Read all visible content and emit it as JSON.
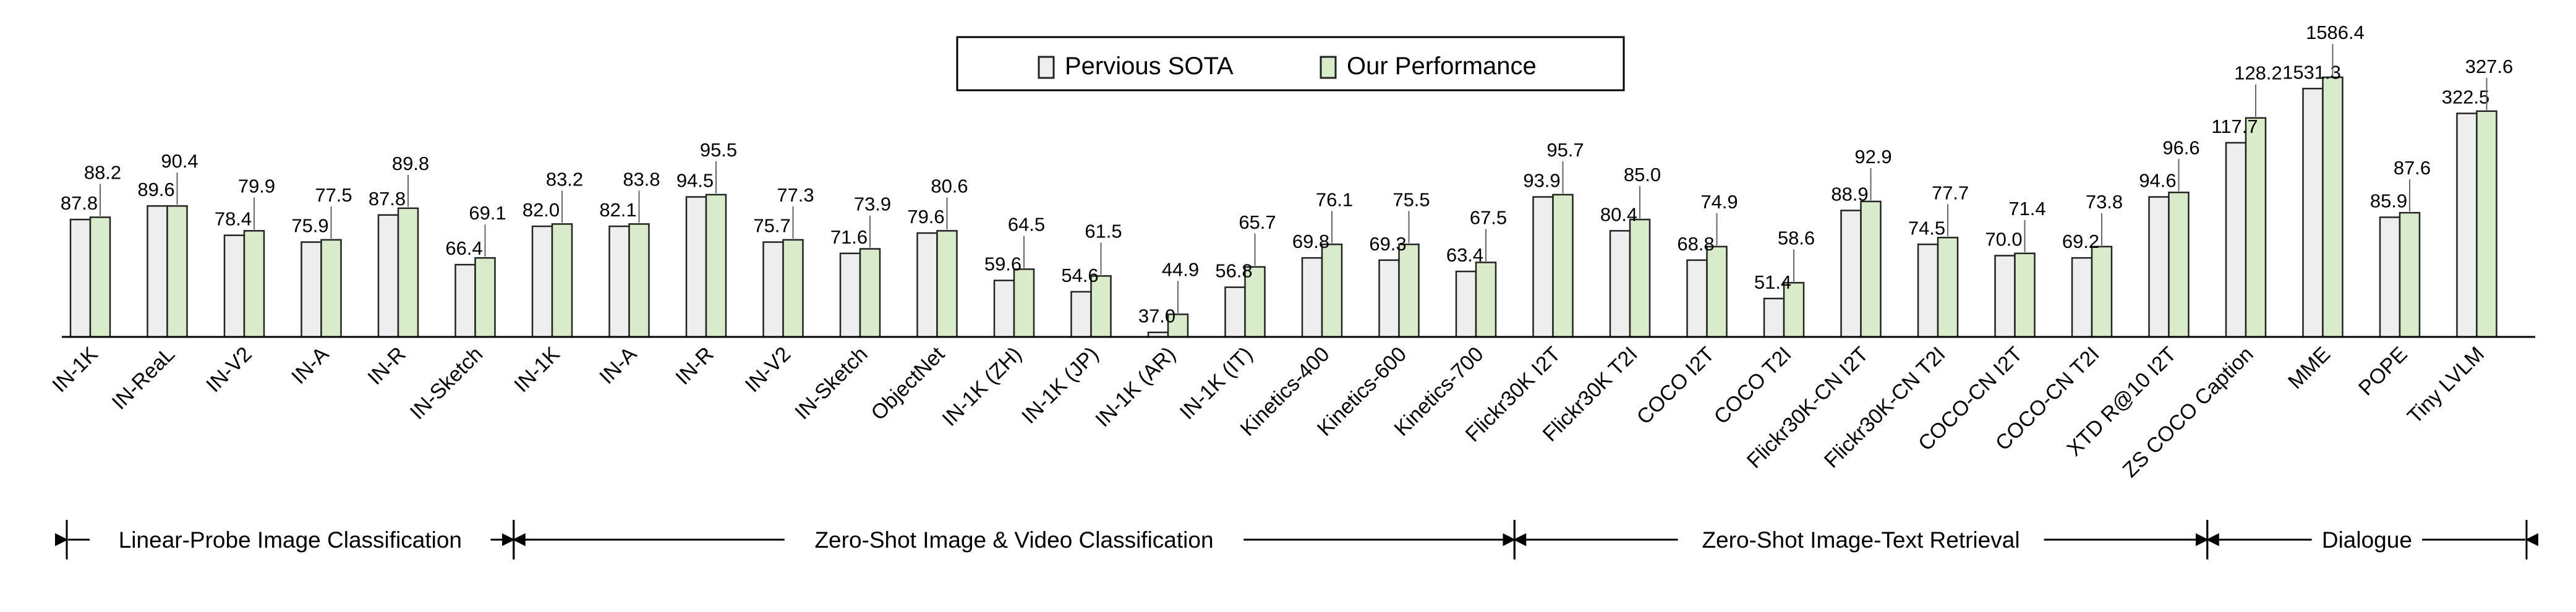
{
  "chart_data": {
    "type": "bar",
    "legend": {
      "placement": "top-center"
    },
    "grid": false,
    "colors": {
      "previous": "#eeeeee",
      "ours": "#d9ecc9",
      "stroke": "#222222"
    },
    "series": [
      {
        "name": "Pervious SOTA",
        "color": "#eeeeee"
      },
      {
        "name": "Our Performance",
        "color": "#d9ecc9"
      }
    ],
    "categories": [
      {
        "label": "IN-1K",
        "prev": "87.8",
        "ours": "88.2",
        "h1": 0.52,
        "h2": 0.53
      },
      {
        "label": "IN-ReaL",
        "prev": "89.6",
        "ours": "90.4",
        "h1": 0.58,
        "h2": 0.58
      },
      {
        "label": "IN-V2",
        "prev": "78.4",
        "ours": "79.9",
        "h1": 0.45,
        "h2": 0.47
      },
      {
        "label": "IN-A",
        "prev": "75.9",
        "ours": "77.5",
        "h1": 0.42,
        "h2": 0.43
      },
      {
        "label": "IN-R",
        "prev": "87.8",
        "ours": "89.8",
        "h1": 0.54,
        "h2": 0.57
      },
      {
        "label": "IN-Sketch",
        "prev": "66.4",
        "ours": "69.1",
        "h1": 0.32,
        "h2": 0.35
      },
      {
        "label": "IN-1K",
        "prev": "82.0",
        "ours": "83.2",
        "h1": 0.49,
        "h2": 0.5
      },
      {
        "label": "IN-A",
        "prev": "82.1",
        "ours": "83.8",
        "h1": 0.49,
        "h2": 0.5
      },
      {
        "label": "IN-R",
        "prev": "94.5",
        "ours": "95.5",
        "h1": 0.62,
        "h2": 0.63
      },
      {
        "label": "IN-V2",
        "prev": "75.7",
        "ours": "77.3",
        "h1": 0.42,
        "h2": 0.43
      },
      {
        "label": "IN-Sketch",
        "prev": "71.6",
        "ours": "73.9",
        "h1": 0.37,
        "h2": 0.39
      },
      {
        "label": "ObjectNet",
        "prev": "79.6",
        "ours": "80.6",
        "h1": 0.46,
        "h2": 0.47
      },
      {
        "label": "IN-1K (ZH)",
        "prev": "59.6",
        "ours": "64.5",
        "h1": 0.25,
        "h2": 0.3
      },
      {
        "label": "IN-1K (JP)",
        "prev": "54.6",
        "ours": "61.5",
        "h1": 0.2,
        "h2": 0.27
      },
      {
        "label": "IN-1K (AR)",
        "prev": "37.0",
        "ours": "44.9",
        "h1": 0.02,
        "h2": 0.1
      },
      {
        "label": "IN-1K (IT)",
        "prev": "56.8",
        "ours": "65.7",
        "h1": 0.22,
        "h2": 0.31
      },
      {
        "label": "Kinetics-400",
        "prev": "69.8",
        "ours": "76.1",
        "h1": 0.35,
        "h2": 0.41
      },
      {
        "label": "Kinetics-600",
        "prev": "69.3",
        "ours": "75.5",
        "h1": 0.34,
        "h2": 0.41
      },
      {
        "label": "Kinetics-700",
        "prev": "63.4",
        "ours": "67.5",
        "h1": 0.29,
        "h2": 0.33
      },
      {
        "label": "Flickr30K I2T",
        "prev": "93.9",
        "ours": "95.7",
        "h1": 0.62,
        "h2": 0.63
      },
      {
        "label": "Flickr30K T2I",
        "prev": "80.4",
        "ours": "85.0",
        "h1": 0.47,
        "h2": 0.52
      },
      {
        "label": "COCO I2T",
        "prev": "68.8",
        "ours": "74.9",
        "h1": 0.34,
        "h2": 0.4
      },
      {
        "label": "COCO T2I",
        "prev": "51.4",
        "ours": "58.6",
        "h1": 0.17,
        "h2": 0.24
      },
      {
        "label": "Flickr30K-CN I2T",
        "prev": "88.9",
        "ours": "92.9",
        "h1": 0.56,
        "h2": 0.6
      },
      {
        "label": "Flickr30K-CN T2I",
        "prev": "74.5",
        "ours": "77.7",
        "h1": 0.41,
        "h2": 0.44
      },
      {
        "label": "COCO-CN I2T",
        "prev": "70.0",
        "ours": "71.4",
        "h1": 0.36,
        "h2": 0.37
      },
      {
        "label": "COCO-CN T2I",
        "prev": "69.2",
        "ours": "73.8",
        "h1": 0.35,
        "h2": 0.4
      },
      {
        "label": "XTD R@10 I2T",
        "prev": "94.6",
        "ours": "96.6",
        "h1": 0.62,
        "h2": 0.64
      },
      {
        "label": "ZS COCO Caption",
        "prev": "117.7",
        "ours": "128.2",
        "h1": 0.86,
        "h2": 0.97
      },
      {
        "label": "MME",
        "prev": "1531.3",
        "ours": "1586.4",
        "h1": 1.1,
        "h2": 1.15
      },
      {
        "label": "POPE",
        "prev": "85.9",
        "ours": "87.6",
        "h1": 0.53,
        "h2": 0.55
      },
      {
        "label": "Tiny LVLM",
        "prev": "322.5",
        "ours": "327.6",
        "h1": 0.99,
        "h2": 1.0
      }
    ],
    "groups": [
      {
        "label": "Linear-Probe Image Classification",
        "start": 0,
        "end": 5
      },
      {
        "label": "Zero-Shot Image & Video Classification",
        "start": 6,
        "end": 18
      },
      {
        "label": "Zero-Shot Image-Text Retrieval",
        "start": 19,
        "end": 27
      },
      {
        "label": "Dialogue",
        "start": 28,
        "end": 31
      }
    ]
  }
}
